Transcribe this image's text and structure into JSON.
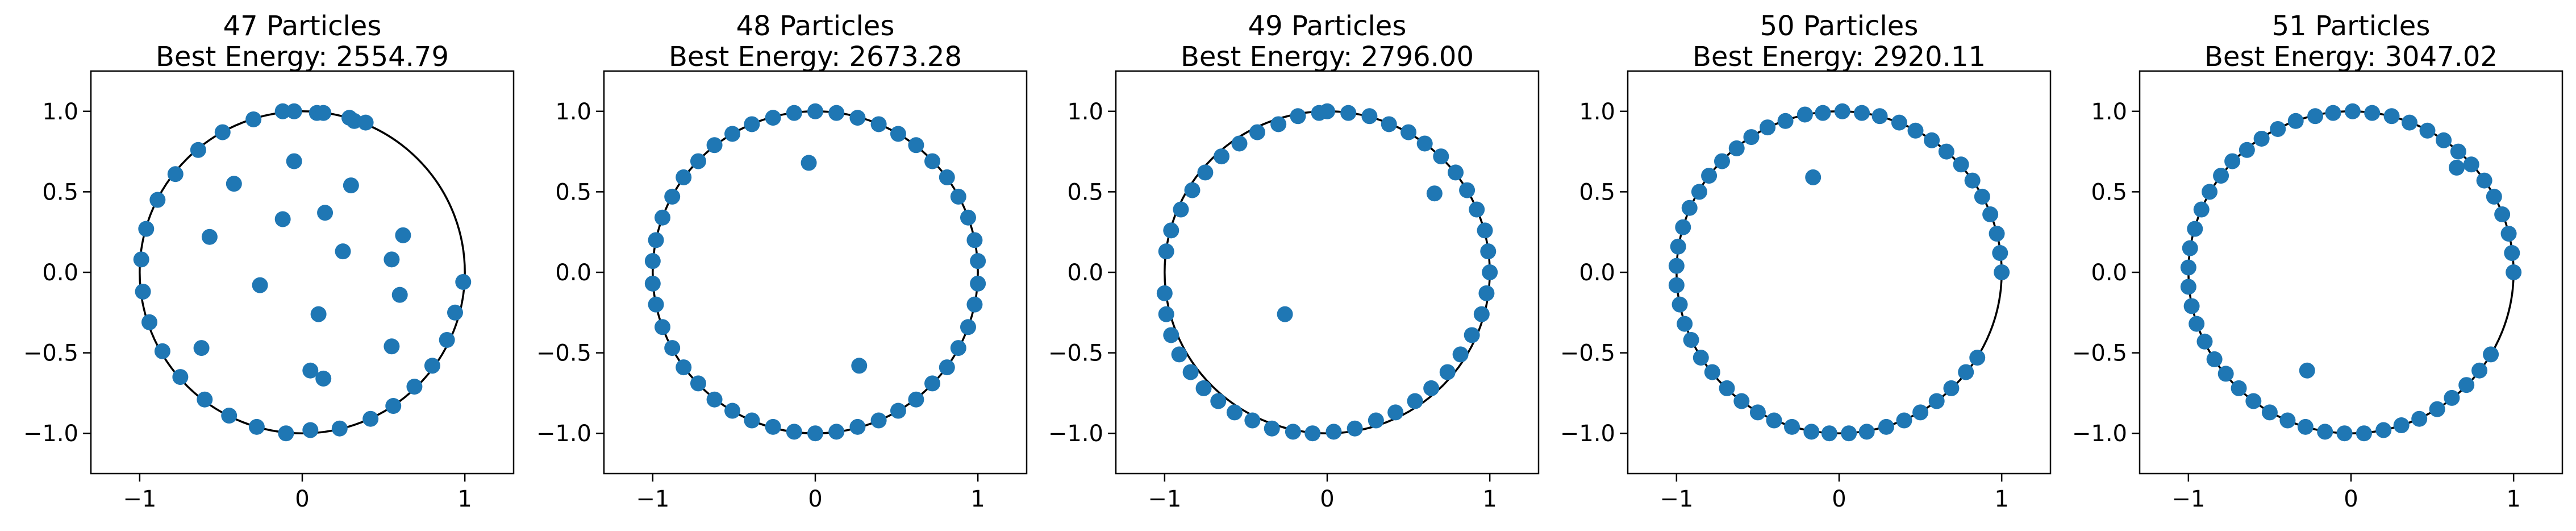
{
  "chart_data": [
    {
      "type": "scatter",
      "title": "47 Particles",
      "subtitle": "Best Energy: 2554.79",
      "xlim": [
        -1.3,
        1.3
      ],
      "ylim": [
        -1.25,
        1.25
      ],
      "xticks": [
        -1,
        0,
        1
      ],
      "xtick_labels": [
        "−1",
        "0",
        "1"
      ],
      "yticks": [
        -1.0,
        -0.5,
        0.0,
        0.5,
        1.0
      ],
      "ytick_labels": [
        "−1.0",
        "−0.5",
        "0.0",
        "0.5",
        "1.0"
      ],
      "boundary": {
        "shape": "circle",
        "radius": 1.0,
        "color": "#000000"
      },
      "marker_color": "#1f77b4",
      "x": [
        -0.05,
        0.09,
        0.32,
        0.39,
        0.29,
        0.13,
        -0.1,
        -0.28,
        -0.45,
        -0.6,
        -0.75,
        -0.86,
        -0.94,
        -0.98,
        -0.99,
        -0.96,
        -0.89,
        -0.78,
        -0.64,
        -0.49,
        -0.3,
        -0.12,
        0.05,
        0.23,
        0.42,
        0.56,
        0.69,
        0.8,
        0.89,
        0.94,
        0.99,
        -0.05,
        0.13,
        0.3,
        0.62,
        0.6,
        0.25,
        0.55,
        -0.57,
        -0.26,
        -0.42,
        0.14,
        0.1,
        -0.12,
        0.55,
        0.05,
        -0.62
      ],
      "y": [
        1.0,
        0.99,
        0.94,
        0.93,
        0.96,
        0.99,
        -1.0,
        -0.96,
        -0.89,
        -0.79,
        -0.65,
        -0.49,
        -0.31,
        -0.12,
        0.08,
        0.27,
        0.45,
        0.61,
        0.76,
        0.87,
        0.95,
        1.0,
        -0.98,
        -0.97,
        -0.91,
        -0.83,
        -0.71,
        -0.58,
        -0.42,
        -0.25,
        -0.06,
        0.69,
        -0.66,
        0.54,
        0.23,
        -0.14,
        0.13,
        -0.46,
        0.22,
        -0.08,
        0.55,
        0.37,
        -0.26,
        0.33,
        0.08,
        -0.61,
        -0.47
      ]
    },
    {
      "type": "scatter",
      "title": "48 Particles",
      "subtitle": "Best Energy: 2673.28",
      "xlim": [
        -1.3,
        1.3
      ],
      "ylim": [
        -1.25,
        1.25
      ],
      "xticks": [
        -1,
        0,
        1
      ],
      "xtick_labels": [
        "−1",
        "0",
        "1"
      ],
      "yticks": [
        -1.0,
        -0.5,
        0.0,
        0.5,
        1.0
      ],
      "ytick_labels": [
        "−1.0",
        "−0.5",
        "0.0",
        "0.5",
        "1.0"
      ],
      "boundary": {
        "shape": "circle",
        "radius": 1.0,
        "color": "#000000"
      },
      "marker_color": "#1f77b4",
      "x": [
        0.0,
        0.13,
        0.26,
        0.39,
        0.51,
        0.62,
        0.72,
        0.81,
        0.88,
        0.94,
        0.98,
        1.0,
        1.0,
        0.98,
        0.94,
        0.88,
        0.81,
        0.72,
        0.62,
        0.51,
        0.39,
        0.26,
        0.13,
        0.0,
        -0.13,
        -0.26,
        -0.39,
        -0.51,
        -0.62,
        -0.72,
        -0.81,
        -0.88,
        -0.94,
        -0.98,
        -1.0,
        -1.0,
        -0.98,
        -0.94,
        -0.88,
        -0.81,
        -0.72,
        -0.62,
        -0.51,
        -0.39,
        -0.26,
        -0.13,
        -0.04,
        0.27
      ],
      "y": [
        1.0,
        0.99,
        0.96,
        0.92,
        0.86,
        0.79,
        0.69,
        0.59,
        0.47,
        0.34,
        0.2,
        0.07,
        -0.07,
        -0.2,
        -0.34,
        -0.47,
        -0.59,
        -0.69,
        -0.79,
        -0.86,
        -0.92,
        -0.96,
        -0.99,
        -1.0,
        -0.99,
        -0.96,
        -0.92,
        -0.86,
        -0.79,
        -0.69,
        -0.59,
        -0.47,
        -0.34,
        -0.2,
        -0.07,
        0.07,
        0.2,
        0.34,
        0.47,
        0.59,
        0.69,
        0.79,
        0.86,
        0.92,
        0.96,
        0.99,
        0.68,
        -0.58
      ]
    },
    {
      "type": "scatter",
      "title": "49 Particles",
      "subtitle": "Best Energy: 2796.00",
      "xlim": [
        -1.3,
        1.3
      ],
      "ylim": [
        -1.25,
        1.25
      ],
      "xticks": [
        -1,
        0,
        1
      ],
      "xtick_labels": [
        "−1",
        "0",
        "1"
      ],
      "yticks": [
        -1.0,
        -0.5,
        0.0,
        0.5,
        1.0
      ],
      "ytick_labels": [
        "−1.0",
        "−0.5",
        "0.0",
        "0.5",
        "1.0"
      ],
      "boundary": {
        "shape": "circle",
        "radius": 1.0,
        "color": "#000000"
      },
      "marker_color": "#1f77b4",
      "x": [
        0.0,
        0.13,
        0.26,
        0.38,
        0.5,
        0.6,
        0.7,
        0.79,
        0.86,
        0.92,
        0.97,
        0.99,
        1.0,
        0.98,
        0.95,
        0.89,
        0.82,
        0.74,
        0.64,
        0.54,
        0.42,
        0.3,
        0.17,
        0.04,
        -0.09,
        -0.21,
        -0.34,
        -0.46,
        -0.57,
        -0.67,
        -0.76,
        -0.84,
        -0.91,
        -0.96,
        -0.99,
        -1.0,
        -0.99,
        -0.96,
        -0.9,
        -0.83,
        -0.75,
        -0.65,
        -0.54,
        -0.43,
        -0.3,
        -0.18,
        -0.05,
        -0.26,
        0.66
      ],
      "y": [
        1.0,
        0.99,
        0.97,
        0.92,
        0.87,
        0.8,
        0.72,
        0.62,
        0.51,
        0.39,
        0.26,
        0.13,
        0.0,
        -0.13,
        -0.26,
        -0.39,
        -0.51,
        -0.62,
        -0.72,
        -0.8,
        -0.87,
        -0.92,
        -0.97,
        -0.99,
        -1.0,
        -0.99,
        -0.97,
        -0.92,
        -0.87,
        -0.8,
        -0.72,
        -0.62,
        -0.51,
        -0.39,
        -0.26,
        -0.13,
        0.13,
        0.26,
        0.39,
        0.51,
        0.62,
        0.72,
        0.8,
        0.87,
        0.92,
        0.97,
        0.99,
        -0.26,
        0.49
      ]
    },
    {
      "type": "scatter",
      "title": "50 Particles",
      "subtitle": "Best Energy: 2920.11",
      "xlim": [
        -1.3,
        1.3
      ],
      "ylim": [
        -1.25,
        1.25
      ],
      "xticks": [
        -1,
        0,
        1
      ],
      "xtick_labels": [
        "−1",
        "0",
        "1"
      ],
      "yticks": [
        -1.0,
        -0.5,
        0.0,
        0.5,
        1.0
      ],
      "ytick_labels": [
        "−1.0",
        "−0.5",
        "0.0",
        "0.5",
        "1.0"
      ],
      "boundary": {
        "shape": "circle",
        "radius": 1.0,
        "color": "#000000"
      },
      "marker_color": "#1f77b4",
      "x": [
        1.0,
        0.99,
        0.97,
        0.93,
        0.88,
        0.82,
        0.75,
        0.66,
        0.57,
        0.47,
        0.37,
        0.25,
        0.14,
        0.02,
        -0.1,
        -0.21,
        -0.33,
        -0.44,
        -0.54,
        -0.63,
        -0.72,
        -0.8,
        -0.86,
        -0.92,
        -0.96,
        -0.99,
        -1.0,
        -1.0,
        -0.98,
        -0.95,
        -0.91,
        -0.85,
        -0.78,
        -0.69,
        -0.6,
        -0.5,
        -0.4,
        -0.29,
        -0.17,
        -0.06,
        0.06,
        0.17,
        0.29,
        0.4,
        0.5,
        0.6,
        0.69,
        0.78,
        0.85,
        -0.16
      ],
      "y": [
        0.0,
        0.12,
        0.24,
        0.36,
        0.47,
        0.57,
        0.67,
        0.75,
        0.82,
        0.88,
        0.93,
        0.97,
        0.99,
        1.0,
        0.99,
        0.98,
        0.94,
        0.9,
        0.84,
        0.77,
        0.69,
        0.6,
        0.5,
        0.4,
        0.28,
        0.16,
        0.04,
        -0.08,
        -0.2,
        -0.32,
        -0.42,
        -0.53,
        -0.62,
        -0.72,
        -0.8,
        -0.87,
        -0.92,
        -0.96,
        -0.99,
        -1.0,
        -1.0,
        -0.99,
        -0.96,
        -0.92,
        -0.87,
        -0.8,
        -0.72,
        -0.62,
        -0.53,
        0.59
      ]
    },
    {
      "type": "scatter",
      "title": "51 Particles",
      "subtitle": "Best Energy: 3047.02",
      "xlim": [
        -1.3,
        1.3
      ],
      "ylim": [
        -1.25,
        1.25
      ],
      "xticks": [
        -1,
        0,
        1
      ],
      "xtick_labels": [
        "−1",
        "0",
        "1"
      ],
      "yticks": [
        -1.0,
        -0.5,
        0.0,
        0.5,
        1.0
      ],
      "ytick_labels": [
        "−1.0",
        "−0.5",
        "0.0",
        "0.5",
        "1.0"
      ],
      "boundary": {
        "shape": "circle",
        "radius": 1.0,
        "color": "#000000"
      },
      "marker_color": "#1f77b4",
      "x": [
        1.0,
        0.99,
        0.97,
        0.93,
        0.88,
        0.82,
        0.74,
        0.66,
        0.57,
        0.47,
        0.36,
        0.25,
        0.13,
        0.01,
        -0.11,
        -0.22,
        -0.34,
        -0.45,
        -0.55,
        -0.64,
        -0.73,
        -0.8,
        -0.87,
        -0.92,
        -0.96,
        -0.99,
        -1.0,
        -1.0,
        -0.98,
        -0.95,
        -0.9,
        -0.84,
        -0.77,
        -0.69,
        -0.6,
        -0.5,
        -0.39,
        -0.28,
        -0.16,
        -0.04,
        0.08,
        0.2,
        0.31,
        0.42,
        0.53,
        0.62,
        0.71,
        0.79,
        0.86,
        -0.27,
        0.65
      ],
      "y": [
        0.0,
        0.12,
        0.24,
        0.36,
        0.47,
        0.57,
        0.67,
        0.75,
        0.82,
        0.88,
        0.93,
        0.97,
        0.99,
        1.0,
        0.99,
        0.97,
        0.94,
        0.89,
        0.83,
        0.76,
        0.69,
        0.6,
        0.5,
        0.39,
        0.27,
        0.15,
        0.03,
        -0.09,
        -0.21,
        -0.32,
        -0.43,
        -0.54,
        -0.63,
        -0.72,
        -0.8,
        -0.87,
        -0.92,
        -0.96,
        -0.99,
        -1.0,
        -1.0,
        -0.98,
        -0.95,
        -0.91,
        -0.85,
        -0.78,
        -0.7,
        -0.61,
        -0.51,
        -0.61,
        0.65
      ]
    }
  ]
}
